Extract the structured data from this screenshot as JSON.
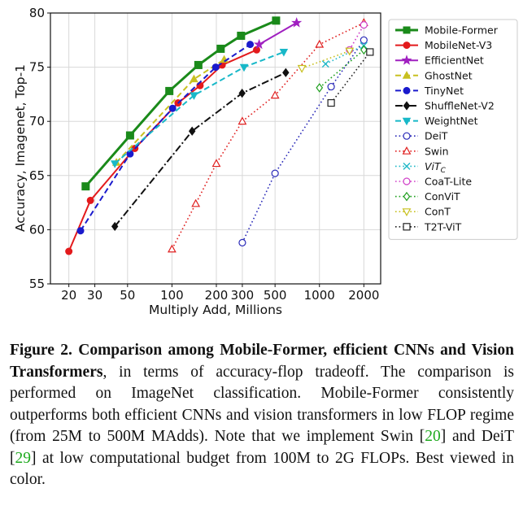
{
  "chart_data": {
    "type": "line",
    "xlabel": "Multiply Add, Millions",
    "ylabel": "Accuracy, Imagenet, Top-1",
    "xscale": "log",
    "xlim": [
      15,
      2600
    ],
    "ylim": [
      55,
      80
    ],
    "xticks": [
      20,
      30,
      50,
      100,
      200,
      300,
      500,
      1000,
      2000
    ],
    "xtick_labels": [
      "20",
      "30",
      "50",
      "100",
      "200",
      "300",
      "500",
      "1000",
      "2000"
    ],
    "yticks": [
      55,
      60,
      65,
      70,
      75,
      80
    ],
    "ytick_labels": [
      "55",
      "60",
      "65",
      "70",
      "75",
      "80"
    ],
    "grid": true,
    "legend_position": "right",
    "series": [
      {
        "name": "Mobile-Former",
        "color": "#1a8a1a",
        "marker": "square",
        "filled": true,
        "line": "solid",
        "width": 3,
        "x": [
          26,
          52,
          96,
          151,
          214,
          294,
          508
        ],
        "y": [
          64.0,
          68.7,
          72.8,
          75.2,
          76.7,
          77.9,
          79.3
        ]
      },
      {
        "name": "MobileNet-V3",
        "color": "#e31a1c",
        "marker": "circle",
        "filled": true,
        "line": "solid",
        "width": 2,
        "x": [
          20,
          28,
          56,
          110,
          155,
          219,
          375
        ],
        "y": [
          58.0,
          62.7,
          67.5,
          71.7,
          73.3,
          75.2,
          76.6
        ]
      },
      {
        "name": "EfficientNet",
        "color": "#a020c0",
        "marker": "star",
        "filled": true,
        "line": "solid",
        "width": 2,
        "x": [
          390,
          700
        ],
        "y": [
          77.1,
          79.1
        ]
      },
      {
        "name": "GhostNet",
        "color": "#c8c020",
        "marker": "triangle-up",
        "filled": true,
        "line": "dashed",
        "width": 2,
        "x": [
          42,
          141,
          226
        ],
        "y": [
          66.2,
          73.9,
          75.7
        ]
      },
      {
        "name": "TinyNet",
        "color": "#1a1acc",
        "marker": "circle",
        "filled": true,
        "line": "dashed",
        "width": 2,
        "x": [
          24,
          52,
          101,
          198,
          339
        ],
        "y": [
          59.9,
          67.0,
          71.2,
          75.0,
          77.1
        ]
      },
      {
        "name": "ShuffleNet-V2",
        "color": "#111111",
        "marker": "diamond",
        "filled": true,
        "line": "dashdot",
        "width": 2,
        "x": [
          41,
          137,
          299,
          591
        ],
        "y": [
          60.3,
          69.1,
          72.6,
          74.5
        ]
      },
      {
        "name": "WeightNet",
        "color": "#18b8c8",
        "marker": "triangle-down",
        "filled": true,
        "line": "dashed",
        "width": 2,
        "x": [
          41,
          141,
          308,
          573
        ],
        "y": [
          66.1,
          72.4,
          75.0,
          76.4
        ]
      },
      {
        "name": "DeiT",
        "color": "#2a2ab8",
        "marker": "circle",
        "filled": false,
        "line": "dotted",
        "width": 1.6,
        "x": [
          300,
          500,
          1200,
          2000
        ],
        "y": [
          58.8,
          65.2,
          73.2,
          77.5
        ]
      },
      {
        "name": "Swin",
        "color": "#e02020",
        "marker": "triangle-up",
        "filled": false,
        "line": "dotted",
        "width": 1.6,
        "x": [
          100,
          145,
          200,
          300,
          500,
          1000,
          2000
        ],
        "y": [
          58.2,
          62.4,
          66.1,
          70.0,
          72.4,
          77.1,
          79.1
        ]
      },
      {
        "name": "ViT",
        "name_sub": "C",
        "color": "#20b8c8",
        "marker": "x",
        "filled": false,
        "line": "dotted",
        "width": 1.6,
        "x": [
          1100,
          2000
        ],
        "y": [
          75.3,
          77.0
        ]
      },
      {
        "name": "CoaT-Lite",
        "color": "#d040c8",
        "marker": "circle",
        "filled": false,
        "line": "dotted",
        "width": 1.6,
        "x": [
          1600,
          2000
        ],
        "y": [
          76.6,
          78.9
        ]
      },
      {
        "name": "ConViT",
        "color": "#20a020",
        "marker": "diamond",
        "filled": false,
        "line": "dotted",
        "width": 1.6,
        "x": [
          1000,
          2000
        ],
        "y": [
          73.1,
          76.6
        ]
      },
      {
        "name": "ConT",
        "color": "#c8c020",
        "marker": "triangle-down",
        "filled": false,
        "line": "dotted",
        "width": 1.6,
        "x": [
          760,
          1600
        ],
        "y": [
          74.9,
          76.5
        ]
      },
      {
        "name": "T2T-ViT",
        "color": "#222222",
        "marker": "square",
        "filled": false,
        "line": "dotted",
        "width": 1.6,
        "x": [
          1200,
          2200
        ],
        "y": [
          71.7,
          76.4
        ]
      }
    ]
  },
  "caption": {
    "prefix": "Figure 2.",
    "bold": "Comparison among Mobile-Former, efficient CNNs and Vision Transformers",
    "text1": ", in terms of accuracy-flop tradeoff. The comparison is performed on ImageNet classification.  Mobile-Former consistently outperforms both efficient CNNs and vision transformers in low FLOP regime (from 25M to 500M MAdds). Note that we implement Swin [",
    "ref1": "20",
    "text2": "] and DeiT [",
    "ref2": "29",
    "text3": "] at low computational budget from 100M to 2G FLOPs. Best viewed in color."
  }
}
